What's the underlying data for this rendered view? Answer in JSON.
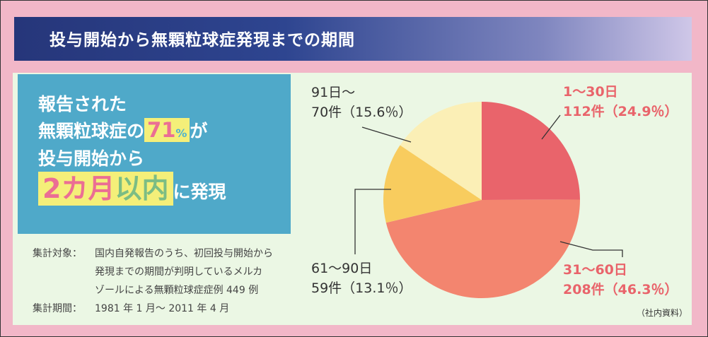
{
  "header": {
    "title": "投与開始から無顆粒球症発現までの期間"
  },
  "headline": {
    "line1": "報告された",
    "line2_prefix": "無顆粒球症の",
    "line2_num": "71",
    "line2_pct": "%",
    "line2_suffix": "が",
    "line3": "投与開始から",
    "line4_a": "2",
    "line4_b": "カ",
    "line4_c": "月",
    "line4_d": "以",
    "line4_e": "内",
    "line4_suffix": "に発現"
  },
  "notes": {
    "target_label": "集計対象：",
    "target_line1": "国内自発報告のうち、初回投与開始から",
    "target_line2": "発現までの期間が判明しているメルカ",
    "target_line3": "ゾールによる無顆粒球症症例 449 例",
    "period_label": "集計期間：",
    "period_value": "1981 年 1 月～ 2011 年 4 月"
  },
  "source": "（社内資料）",
  "colors": {
    "slice1": "#e9646b",
    "slice2": "#f3856f",
    "slice3": "#f8cc5e",
    "slice4": "#fbefb6"
  },
  "chart_data": {
    "type": "pie",
    "title": "投与開始から無顆粒球症発現までの期間",
    "slices": [
      {
        "label": "1～30日",
        "count": 112,
        "percent": 24.9,
        "display": "112件（24.9％）"
      },
      {
        "label": "31～60日",
        "count": 208,
        "percent": 46.3,
        "display": "208件（46.3％）"
      },
      {
        "label": "61～90日",
        "count": 59,
        "percent": 13.1,
        "display": "59件（13.1％）"
      },
      {
        "label": "91日～",
        "count": 70,
        "percent": 15.6,
        "display": "70件（15.6％）"
      }
    ]
  }
}
